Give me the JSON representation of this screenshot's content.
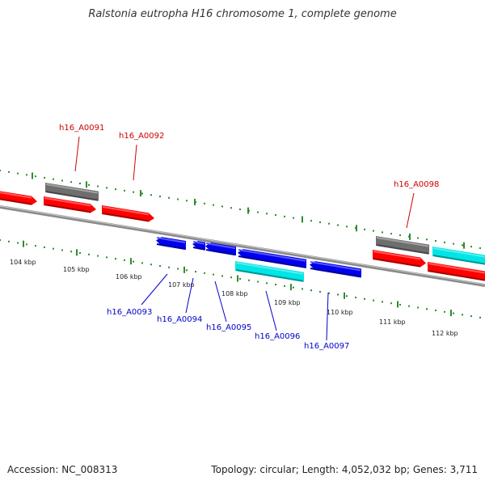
{
  "title": "Ralstonia eutropha H16 chromosome 1, complete genome",
  "footer": {
    "accession": "Accession: NC_008313",
    "summary": "Topology: circular; Length: 4,052,032 bp; Genes: 3,711"
  },
  "colors": {
    "forward_gene": "#ff0000",
    "reverse_gene": "#0000ee",
    "rna_gene": "#00e5e5",
    "pseudo_gene": "#6e6e6e",
    "ticks": "#2e8b2e",
    "backbone": "#8a8a8a",
    "forward_label": "#cc0000",
    "reverse_label": "#0000cc"
  },
  "kbp_labels": [
    "104 kbp",
    "105 kbp",
    "106 kbp",
    "107 kbp",
    "108 kbp",
    "109 kbp",
    "110 kbp",
    "111 kbp",
    "112 kbp"
  ],
  "forward_labels": [
    "h16_A0091",
    "h16_A0092",
    "h16_A0098"
  ],
  "reverse_labels": [
    "h16_A0093",
    "h16_A0094",
    "h16_A0095",
    "h16_A0096",
    "h16_A0097"
  ]
}
